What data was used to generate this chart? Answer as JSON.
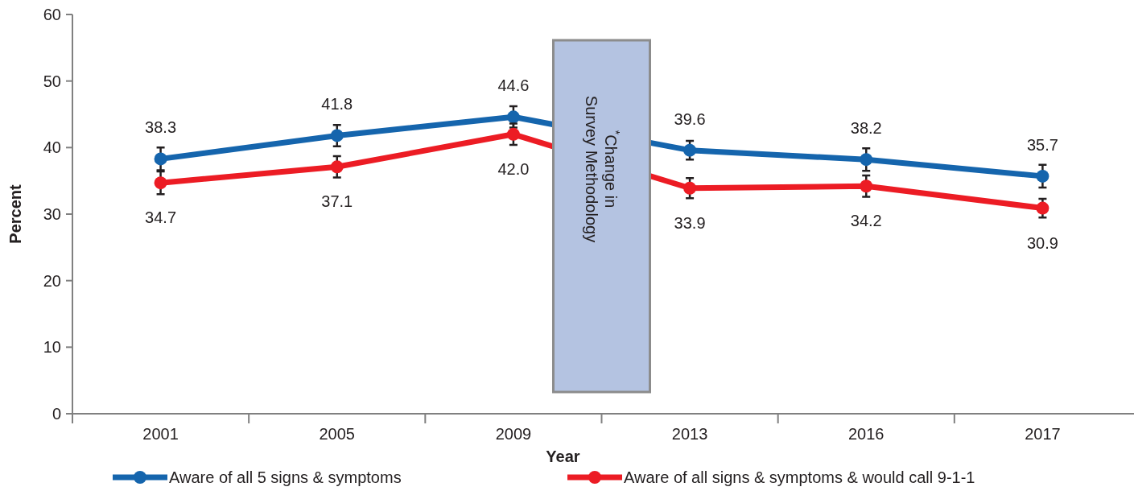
{
  "chart_data": {
    "type": "line",
    "xlabel": "Year",
    "ylabel": "Percent",
    "categories": [
      "2001",
      "2005",
      "2009",
      "2013",
      "2016",
      "2017"
    ],
    "series": [
      {
        "name": "Aware of all 5 signs & symptoms",
        "color": "#1565ad",
        "values": [
          38.3,
          41.8,
          44.6,
          39.6,
          38.2,
          35.7
        ],
        "errors": [
          1.7,
          1.6,
          1.6,
          1.4,
          1.7,
          1.7
        ],
        "value_labels": [
          "38.3",
          "41.8",
          "44.6",
          "39.6",
          "38.2",
          "35.7"
        ]
      },
      {
        "name": "Aware of all signs & symptoms & would call 9-1-1",
        "color": "#ec1c24",
        "values": [
          34.7,
          37.1,
          42.0,
          33.9,
          34.2,
          30.9
        ],
        "errors": [
          1.7,
          1.6,
          1.6,
          1.5,
          1.6,
          1.4
        ],
        "value_labels": [
          "34.7",
          "37.1",
          "42.0",
          "33.9",
          "34.2",
          "30.9"
        ]
      }
    ],
    "ylim": [
      0,
      60
    ],
    "yticks": [
      0,
      10,
      20,
      30,
      40,
      50,
      60
    ],
    "marker": "circle",
    "line_style": "solid",
    "legend": "bottom",
    "grid": false,
    "annotations": [
      "$^{*}$Change in Survey Methodology"
    ]
  }
}
